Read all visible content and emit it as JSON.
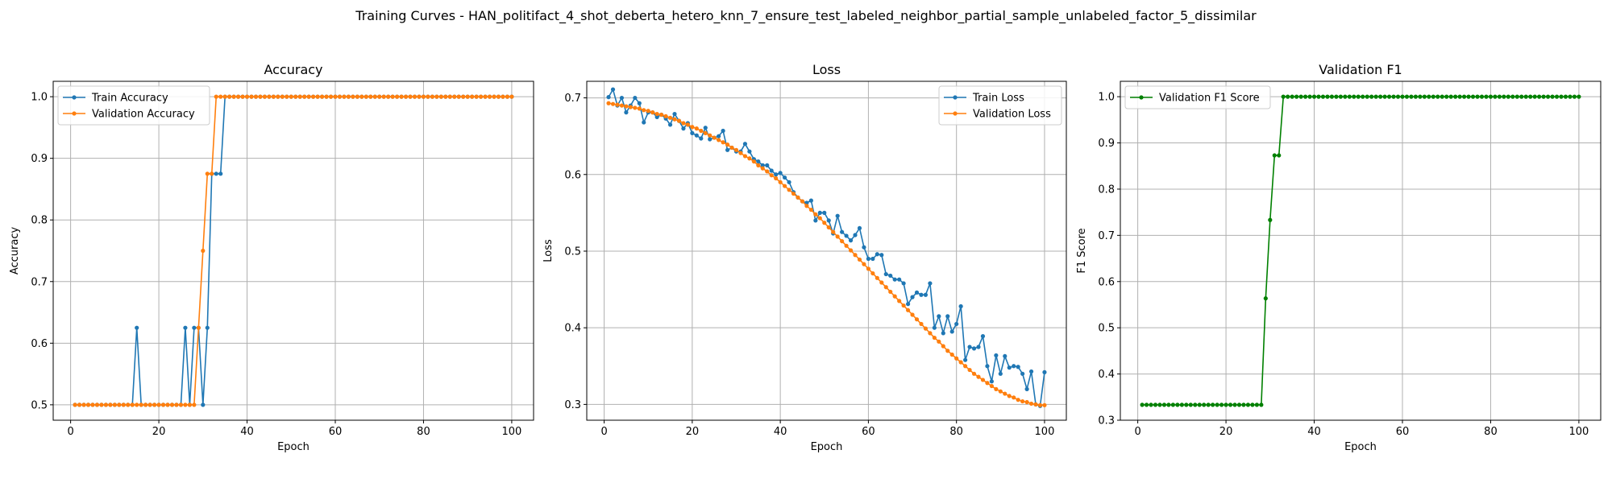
{
  "figure": {
    "suptitle": "Training Curves - HAN_politifact_4_shot_deberta_hetero_knn_7_ensure_test_labeled_neighbor_partial_sample_unlabeled_factor_5_dissimilar"
  },
  "colors": {
    "blue": "#1f77b4",
    "orange": "#ff7f0e",
    "green": "#008000",
    "grid": "#b0b0b0"
  },
  "chart_data": [
    {
      "type": "line",
      "title": "Accuracy",
      "xlabel": "Epoch",
      "ylabel": "Accuracy",
      "xlim": [
        -3.95,
        104.95
      ],
      "ylim": [
        0.475,
        1.025
      ],
      "xticks": [
        0,
        20,
        40,
        60,
        80,
        100
      ],
      "yticks": [
        0.5,
        0.6,
        0.7,
        0.8,
        0.9,
        1.0
      ],
      "ytick_labels": [
        "0.5",
        "0.6",
        "0.7",
        "0.8",
        "0.9",
        "1.0"
      ],
      "grid": true,
      "legend": "top-left",
      "series": [
        {
          "name": "Train Accuracy",
          "color": "#1f77b4",
          "segments": [
            [
              1,
              14,
              0.5
            ],
            [
              15,
              15,
              0.625
            ],
            [
              16,
              25,
              0.5
            ],
            [
              26,
              26,
              0.625
            ],
            [
              27,
              27,
              0.5
            ],
            [
              28,
              29,
              0.625
            ],
            [
              30,
              30,
              0.5
            ],
            [
              31,
              31,
              0.625
            ],
            [
              32,
              34,
              0.875
            ],
            [
              35,
              100,
              1.0
            ]
          ]
        },
        {
          "name": "Validation Accuracy",
          "color": "#ff7f0e",
          "segments": [
            [
              1,
              28,
              0.5
            ],
            [
              29,
              29,
              0.625
            ],
            [
              30,
              30,
              0.75
            ],
            [
              31,
              32,
              0.875
            ],
            [
              33,
              100,
              1.0
            ]
          ]
        }
      ]
    },
    {
      "type": "line",
      "title": "Loss",
      "xlabel": "Epoch",
      "ylabel": "Loss",
      "xlim": [
        -3.95,
        104.95
      ],
      "ylim": [
        0.2794,
        0.7216
      ],
      "xticks": [
        0,
        20,
        40,
        60,
        80,
        100
      ],
      "yticks": [
        0.3,
        0.4,
        0.5,
        0.6,
        0.7
      ],
      "ytick_labels": [
        "0.3",
        "0.4",
        "0.5",
        "0.6",
        "0.7"
      ],
      "grid": true,
      "legend": "top-right",
      "series": [
        {
          "name": "Train Loss",
          "color": "#1f77b4",
          "x_start": 1,
          "values": [
            0.701,
            0.711,
            0.69,
            0.7,
            0.681,
            0.69,
            0.7,
            0.693,
            0.668,
            0.681,
            0.681,
            0.675,
            0.678,
            0.673,
            0.665,
            0.679,
            0.67,
            0.66,
            0.667,
            0.654,
            0.651,
            0.647,
            0.661,
            0.646,
            0.648,
            0.65,
            0.657,
            0.632,
            0.635,
            0.63,
            0.63,
            0.64,
            0.63,
            0.62,
            0.617,
            0.612,
            0.612,
            0.605,
            0.6,
            0.602,
            0.596,
            0.59,
            0.577,
            0.57,
            0.565,
            0.563,
            0.566,
            0.54,
            0.55,
            0.55,
            0.54,
            0.523,
            0.546,
            0.525,
            0.52,
            0.514,
            0.521,
            0.53,
            0.505,
            0.49,
            0.49,
            0.496,
            0.495,
            0.47,
            0.468,
            0.463,
            0.463,
            0.458,
            0.431,
            0.44,
            0.446,
            0.443,
            0.443,
            0.458,
            0.4,
            0.415,
            0.393,
            0.415,
            0.395,
            0.405,
            0.428,
            0.358,
            0.375,
            0.373,
            0.375,
            0.389,
            0.35,
            0.33,
            0.364,
            0.34,
            0.363,
            0.348,
            0.35,
            0.349,
            0.34,
            0.32,
            0.343,
            0.3,
            0.298,
            0.342
          ]
        },
        {
          "name": "Validation Loss",
          "color": "#ff7f0e",
          "x_start": 1,
          "values": [
            0.693,
            0.692,
            0.691,
            0.69,
            0.689,
            0.688,
            0.687,
            0.686,
            0.684,
            0.683,
            0.681,
            0.679,
            0.678,
            0.676,
            0.674,
            0.672,
            0.67,
            0.667,
            0.665,
            0.662,
            0.66,
            0.657,
            0.654,
            0.651,
            0.648,
            0.645,
            0.642,
            0.639,
            0.635,
            0.632,
            0.628,
            0.624,
            0.621,
            0.617,
            0.612,
            0.608,
            0.604,
            0.599,
            0.595,
            0.59,
            0.585,
            0.58,
            0.575,
            0.57,
            0.565,
            0.559,
            0.554,
            0.548,
            0.543,
            0.537,
            0.531,
            0.525,
            0.519,
            0.513,
            0.507,
            0.501,
            0.495,
            0.489,
            0.483,
            0.477,
            0.471,
            0.465,
            0.459,
            0.453,
            0.447,
            0.441,
            0.435,
            0.429,
            0.423,
            0.417,
            0.411,
            0.405,
            0.399,
            0.393,
            0.387,
            0.382,
            0.376,
            0.37,
            0.365,
            0.36,
            0.355,
            0.35,
            0.345,
            0.34,
            0.336,
            0.332,
            0.328,
            0.324,
            0.32,
            0.317,
            0.314,
            0.311,
            0.309,
            0.306,
            0.304,
            0.303,
            0.301,
            0.3,
            0.299,
            0.299
          ]
        }
      ]
    },
    {
      "type": "line",
      "title": "Validation F1",
      "xlabel": "Epoch",
      "ylabel": "F1 Score",
      "xlim": [
        -3.95,
        104.95
      ],
      "ylim": [
        0.3,
        1.0333
      ],
      "xticks": [
        0,
        20,
        40,
        60,
        80,
        100
      ],
      "yticks": [
        0.3,
        0.4,
        0.5,
        0.6,
        0.7,
        0.8,
        0.9,
        1.0
      ],
      "ytick_labels": [
        "0.3",
        "0.4",
        "0.5",
        "0.6",
        "0.7",
        "0.8",
        "0.9",
        "1.0"
      ],
      "grid": true,
      "legend": "top-left",
      "series": [
        {
          "name": "Validation F1 Score",
          "color": "#008000",
          "segments": [
            [
              1,
              28,
              0.3333
            ],
            [
              29,
              29,
              0.5636
            ],
            [
              30,
              30,
              0.7333
            ],
            [
              31,
              32,
              0.873
            ],
            [
              33,
              100,
              1.0
            ]
          ]
        }
      ]
    }
  ]
}
